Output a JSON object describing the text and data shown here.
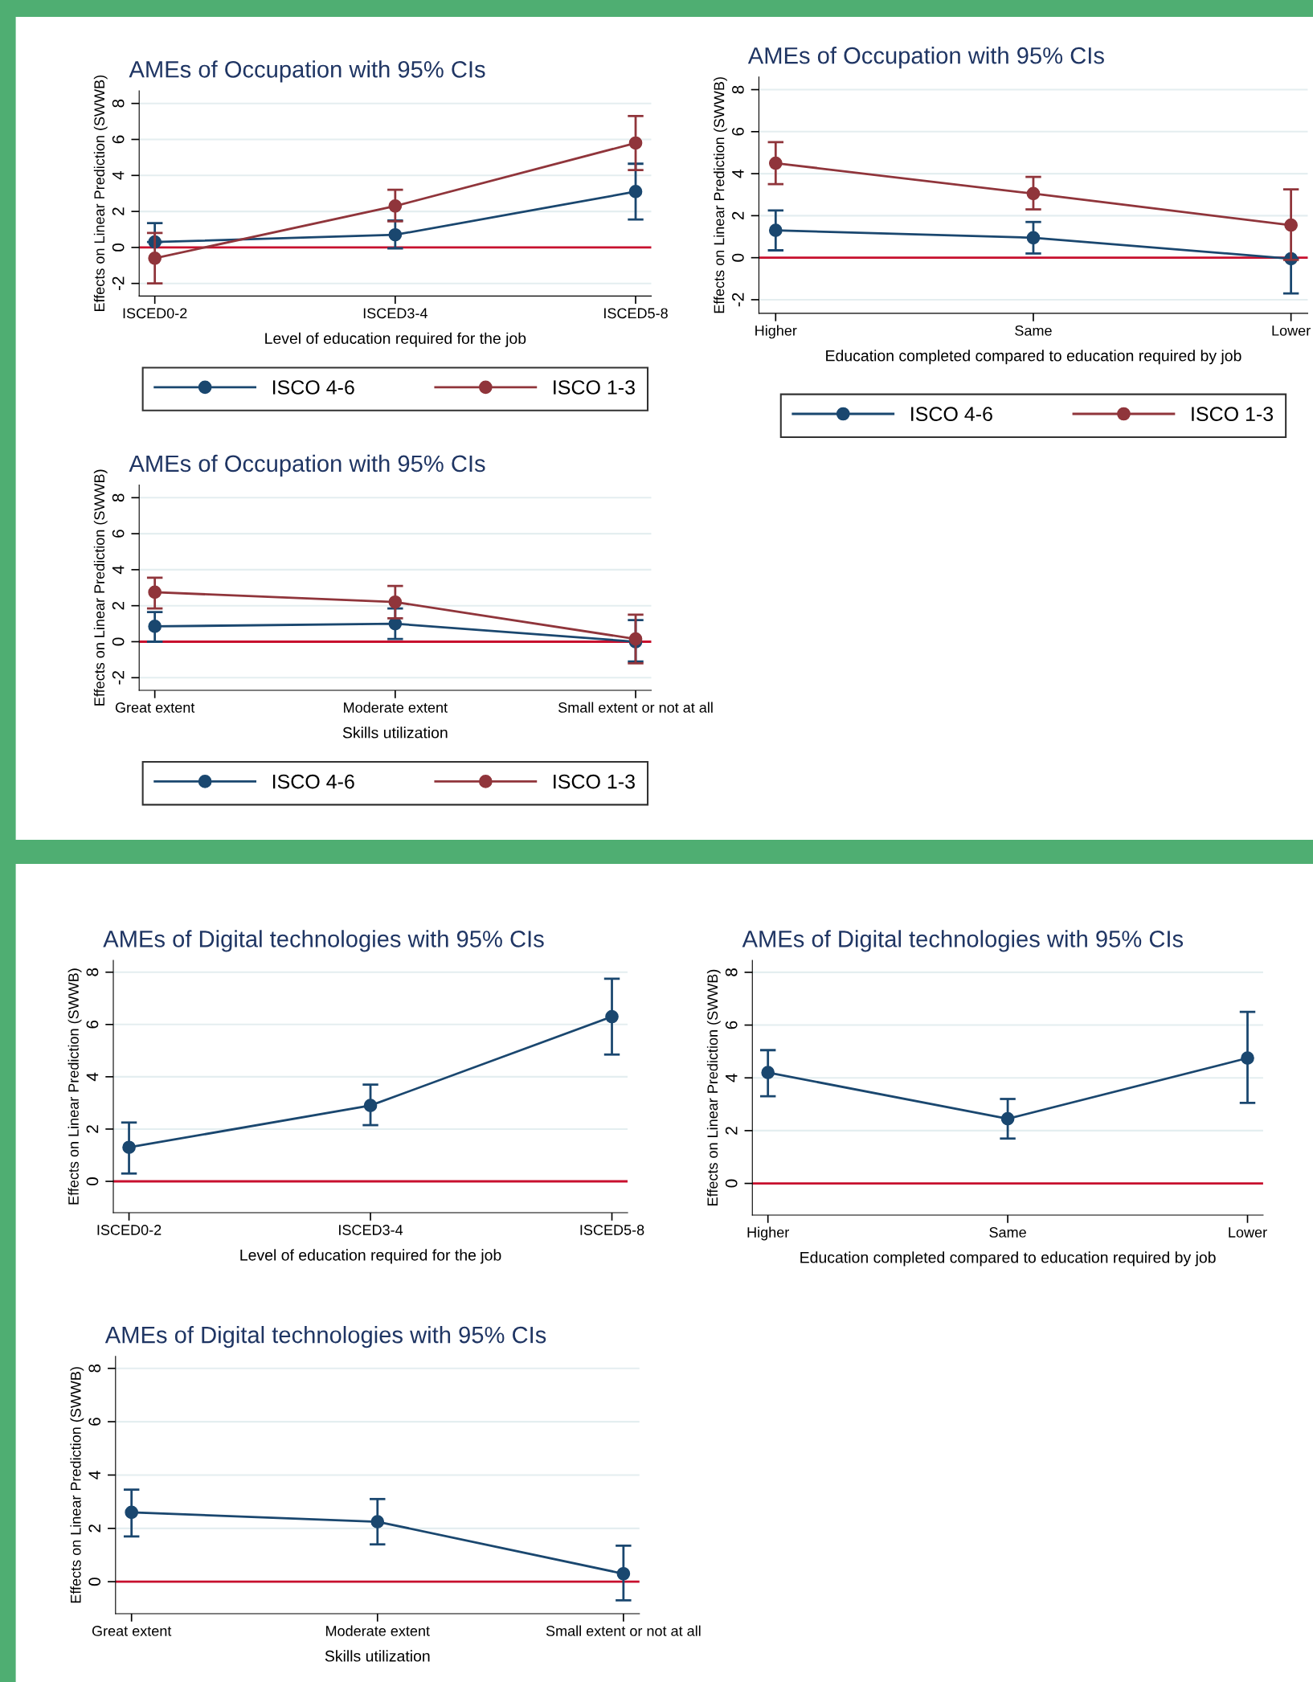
{
  "chart_data": [
    {
      "type": "line",
      "title": "AMEs of Occupation with 95% CIs",
      "xlabel": "Level of education required for the job",
      "ylabel": "Effects on Linear Prediction (SWWB)",
      "categories": [
        "ISCED0-2",
        "ISCED3-4",
        "ISCED5-8"
      ],
      "ylim": [
        -2.7,
        8.7
      ],
      "yticks": [
        -2,
        0,
        2,
        4,
        6,
        8
      ],
      "grid": "y",
      "legend": "bottom",
      "marker": "circle",
      "line_style": "solid",
      "ref_lines": [
        {
          "axis": "y",
          "value": 0,
          "color": "#c8102e"
        }
      ],
      "series": [
        {
          "name": "ISCO 4-6",
          "color": "#1a476f",
          "values": [
            0.3,
            0.7,
            3.1
          ],
          "errors": [
            [
              0.3,
              1.35
            ],
            [
              -0.05,
              1.5
            ],
            [
              1.55,
              4.65
            ]
          ]
        },
        {
          "name": "ISCO 1-3",
          "color": "#90353b",
          "values": [
            -0.6,
            2.3,
            5.8
          ],
          "errors": [
            [
              -2.0,
              0.8
            ],
            [
              1.45,
              3.2
            ],
            [
              4.3,
              7.3
            ]
          ]
        }
      ]
    },
    {
      "type": "line",
      "title": "AMEs of Occupation with 95% CIs",
      "xlabel": "Education completed compared to education required by job",
      "ylabel": "Effects on Linear Prediction (SWWB)",
      "categories": [
        "Higher",
        "Same",
        "Lower"
      ],
      "ylim": [
        -2.65,
        8.6
      ],
      "yticks": [
        -2,
        0,
        2,
        4,
        6,
        8
      ],
      "grid": "y",
      "legend": "bottom",
      "marker": "circle",
      "line_style": "solid",
      "ref_lines": [
        {
          "axis": "y",
          "value": 0,
          "color": "#c8102e"
        }
      ],
      "series": [
        {
          "name": "ISCO 4-6",
          "color": "#1a476f",
          "values": [
            1.3,
            0.95,
            -0.05
          ],
          "errors": [
            [
              0.35,
              2.25
            ],
            [
              0.2,
              1.7
            ],
            [
              -1.7,
              -0.05
            ]
          ]
        },
        {
          "name": "ISCO 1-3",
          "color": "#90353b",
          "values": [
            4.5,
            3.05,
            1.55
          ],
          "errors": [
            [
              3.5,
              5.5
            ],
            [
              2.3,
              3.85
            ],
            [
              -0.1,
              3.25
            ]
          ]
        }
      ]
    },
    {
      "type": "line",
      "title": "AMEs of Occupation with 95% CIs",
      "xlabel": "Skills utilization",
      "ylabel": "Effects on Linear Prediction (SWWB)",
      "categories": [
        "Great extent",
        "Moderate extent",
        "Small extent or not at all"
      ],
      "ylim": [
        -2.7,
        8.7
      ],
      "yticks": [
        -2,
        0,
        2,
        4,
        6,
        8
      ],
      "grid": "y",
      "legend": "bottom",
      "marker": "circle",
      "line_style": "solid",
      "ref_lines": [
        {
          "axis": "y",
          "value": 0,
          "color": "#c8102e"
        }
      ],
      "series": [
        {
          "name": "ISCO 4-6",
          "color": "#1a476f",
          "values": [
            0.85,
            1.0,
            0.0
          ],
          "errors": [
            [
              0.0,
              1.65
            ],
            [
              0.15,
              1.85
            ],
            [
              -1.1,
              1.2
            ]
          ]
        },
        {
          "name": "ISCO 1-3",
          "color": "#90353b",
          "values": [
            2.75,
            2.2,
            0.15
          ],
          "errors": [
            [
              1.85,
              3.55
            ],
            [
              1.3,
              3.1
            ],
            [
              -1.2,
              1.5
            ]
          ]
        }
      ]
    },
    {
      "type": "line",
      "title": "AMEs of Digital technologies with 95% CIs",
      "xlabel": "Level of education required for the job",
      "ylabel": "Effects on Linear Prediction (SWWB)",
      "categories": [
        "ISCED0-2",
        "ISCED3-4",
        "ISCED5-8"
      ],
      "ylim": [
        -1.2,
        8.45
      ],
      "yticks": [
        0,
        2,
        4,
        6,
        8
      ],
      "grid": "y",
      "marker": "circle",
      "line_style": "solid",
      "ref_lines": [
        {
          "axis": "y",
          "value": 0,
          "color": "#c8102e"
        }
      ],
      "series": [
        {
          "color": "#1a476f",
          "values": [
            1.3,
            2.9,
            6.3
          ],
          "errors": [
            [
              0.3,
              2.25
            ],
            [
              2.15,
              3.7
            ],
            [
              4.85,
              7.75
            ]
          ]
        }
      ]
    },
    {
      "type": "line",
      "title": "AMEs of Digital technologies with 95% CIs",
      "xlabel": "Education completed compared to education required by job",
      "ylabel": "Effects on Linear Prediction (SWWB)",
      "categories": [
        "Higher",
        "Same",
        "Lower"
      ],
      "ylim": [
        -1.2,
        8.45
      ],
      "yticks": [
        0,
        2,
        4,
        6,
        8
      ],
      "grid": "y",
      "marker": "circle",
      "line_style": "solid",
      "ref_lines": [
        {
          "axis": "y",
          "value": 0,
          "color": "#c8102e"
        }
      ],
      "series": [
        {
          "color": "#1a476f",
          "values": [
            4.2,
            2.45,
            4.75
          ],
          "errors": [
            [
              3.3,
              5.05
            ],
            [
              1.7,
              3.2
            ],
            [
              3.05,
              6.5
            ]
          ]
        }
      ]
    },
    {
      "type": "line",
      "title": "AMEs of Digital technologies with 95% CIs",
      "xlabel": "Skills utilization",
      "ylabel": "Effects on Linear Prediction (SWWB)",
      "categories": [
        "Great extent",
        "Moderate extent",
        "Small extent or not at all"
      ],
      "ylim": [
        -1.2,
        8.45
      ],
      "yticks": [
        0,
        2,
        4,
        6,
        8
      ],
      "grid": "y",
      "marker": "circle",
      "line_style": "solid",
      "ref_lines": [
        {
          "axis": "y",
          "value": 0,
          "color": "#c8102e"
        }
      ],
      "series": [
        {
          "color": "#1a476f",
          "values": [
            2.6,
            2.25,
            0.3
          ],
          "errors": [
            [
              1.7,
              3.45
            ],
            [
              1.4,
              3.1
            ],
            [
              -0.7,
              1.35
            ]
          ]
        }
      ]
    }
  ]
}
